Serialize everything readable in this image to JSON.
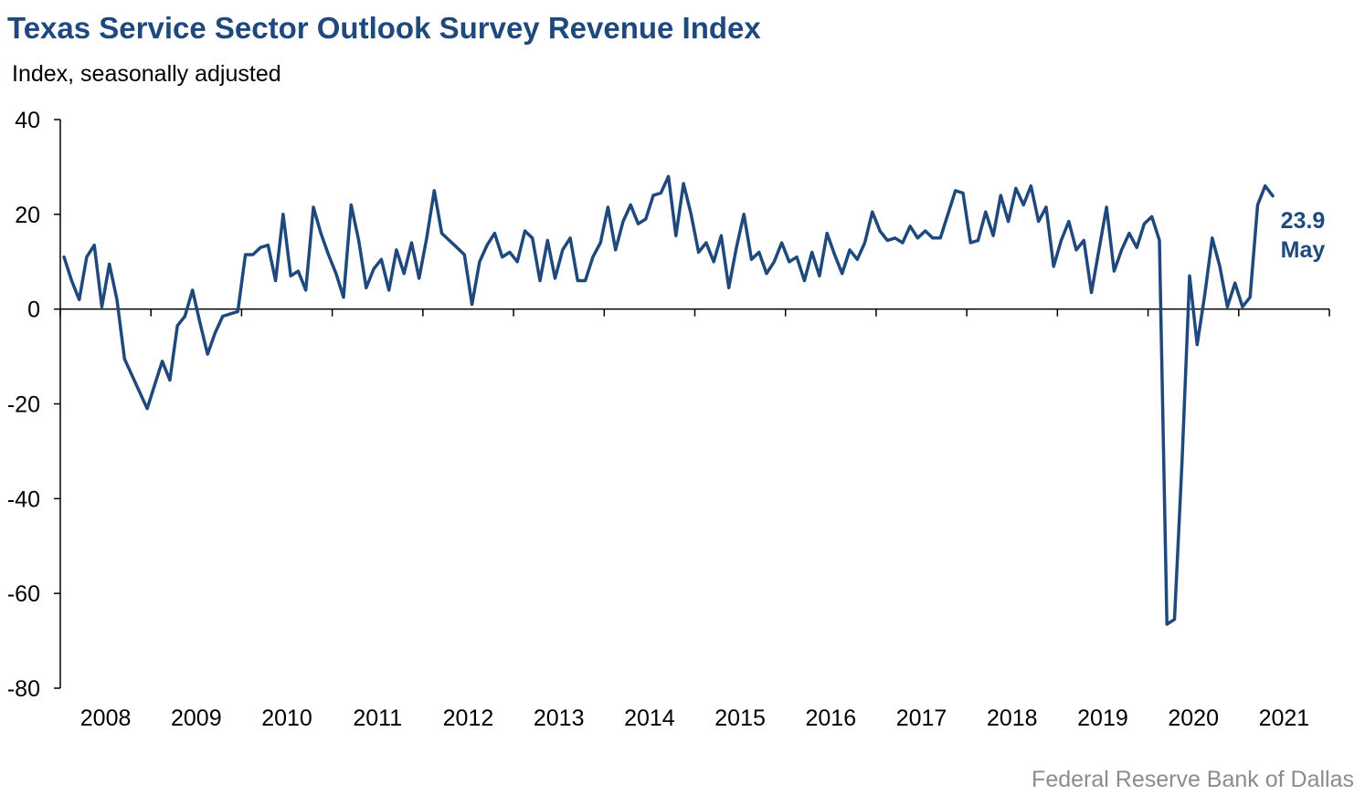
{
  "title": "Texas Service Sector Outlook Survey Revenue Index",
  "subtitle": "Index, seasonally adjusted",
  "source": "Federal Reserve Bank of Dallas",
  "colors": {
    "line": "#1f497d",
    "title": "#1f497d",
    "axis": "#000000",
    "source": "#8c8c8c"
  },
  "chart_data": {
    "type": "line",
    "title": "Texas Service Sector Outlook Survey Revenue Index",
    "ylabel": "Index, seasonally adjusted",
    "xlabel": "",
    "ylim": [
      -80,
      40
    ],
    "yticks": [
      40,
      20,
      0,
      -20,
      -40,
      -60,
      -80
    ],
    "ytick_labels": [
      "40",
      "20",
      "0",
      "-20",
      "-40",
      "-60",
      "-80"
    ],
    "xtick_labels": [
      "2008",
      "2009",
      "2010",
      "2011",
      "2012",
      "2013",
      "2014",
      "2015",
      "2016",
      "2017",
      "2018",
      "2019",
      "2020",
      "2021"
    ],
    "grid": false,
    "x_start": "2008-01",
    "x_end": "2021-05",
    "series": [
      {
        "values": [
          11,
          6,
          2,
          11,
          13.5,
          0.5,
          9.5,
          2,
          -10.5,
          -14,
          -17.5,
          -21,
          -16,
          -11,
          -15,
          -3.5,
          -1.5,
          4,
          -3,
          -9.5,
          -5,
          -1.5,
          -1,
          -0.5,
          11.5,
          11.5,
          13,
          13.5,
          6,
          20,
          7,
          8,
          4,
          21.5,
          16,
          11.5,
          7.5,
          2.5,
          22,
          14.5,
          4.5,
          8.5,
          10.5,
          4,
          12.5,
          7.5,
          14,
          6.5,
          15,
          25,
          16,
          14.5,
          13,
          11.5,
          1,
          10,
          13.5,
          16,
          11,
          12,
          10,
          16.5,
          15,
          6,
          14.5,
          6.5,
          12.5,
          15,
          6,
          6,
          11,
          14,
          21.5,
          12.5,
          18.5,
          22,
          18,
          19,
          24,
          24.5,
          28,
          15.5,
          26.5,
          20,
          12,
          14,
          10,
          15.5,
          4.5,
          13,
          20,
          10.5,
          12,
          7.5,
          10,
          14,
          10,
          11,
          6,
          12,
          7,
          16,
          11.5,
          7.5,
          12.5,
          10.5,
          14,
          20.5,
          16.5,
          14.5,
          15,
          14,
          17.5,
          15,
          16.5,
          15,
          15,
          20,
          25,
          24.5,
          14,
          14.5,
          20.5,
          15.5,
          24,
          18.5,
          25.5,
          22,
          26,
          18.5,
          21.5,
          9,
          14.5,
          18.5,
          12.5,
          14.5,
          3.5,
          12.5,
          21.5,
          8,
          12.5,
          16,
          13,
          18,
          19.5,
          14.5,
          -66.5,
          -65.5,
          -32,
          7,
          -7.5,
          3,
          15,
          9,
          0.5,
          5.5,
          0.5,
          2.5,
          22,
          26,
          23.9
        ]
      }
    ],
    "end_value_label": "23.9",
    "end_month_label": "May"
  }
}
